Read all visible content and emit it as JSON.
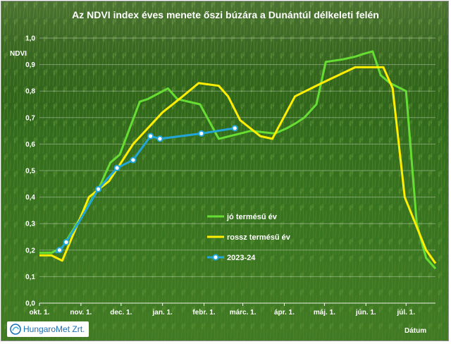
{
  "chart_data": {
    "type": "line",
    "title": "Az NDVI index éves menete őszi búzára a Dunántúl délkeleti felén",
    "ylabel": "NDVI",
    "xlabel": "Dátum",
    "ylim": [
      0,
      1
    ],
    "yticks": [
      "0,0",
      "0,1",
      "0,2",
      "0,3",
      "0,4",
      "0,5",
      "0,6",
      "0,7",
      "0,8",
      "0,9",
      "1,0"
    ],
    "xticks": [
      "okt. 1.",
      "nov. 1.",
      "dec. 1.",
      "jan. 1.",
      "febr. 1.",
      "márc. 1.",
      "ápr. 1.",
      "máj. 1.",
      "jún. 1.",
      "júl. 1."
    ],
    "grid": true,
    "legend_position": "center",
    "series": [
      {
        "name": "jó termésű év",
        "color": "#66dd33",
        "x": [
          0,
          9,
          17,
          45,
          53,
          60,
          75,
          81,
          96,
          103,
          120,
          134,
          150,
          158,
          176,
          185,
          192,
          198,
          207,
          214,
          227,
          236,
          242,
          249,
          255,
          262,
          274,
          282,
          289,
          296
        ],
        "y": [
          0.19,
          0.19,
          0.21,
          0.44,
          0.53,
          0.56,
          0.76,
          0.77,
          0.81,
          0.77,
          0.75,
          0.62,
          0.64,
          0.65,
          0.64,
          0.66,
          0.68,
          0.7,
          0.75,
          0.91,
          0.92,
          0.93,
          0.94,
          0.95,
          0.86,
          0.83,
          0.8,
          0.3,
          0.17,
          0.13
        ]
      },
      {
        "name": "rossz termésű év",
        "color": "#ffee00",
        "x": [
          0,
          9,
          17,
          37,
          52,
          70,
          92,
          107,
          119,
          134,
          141,
          150,
          165,
          174,
          191,
          211,
          236,
          257,
          264,
          273,
          289,
          296
        ],
        "y": [
          0.18,
          0.18,
          0.16,
          0.4,
          0.46,
          0.6,
          0.72,
          0.78,
          0.83,
          0.82,
          0.78,
          0.69,
          0.63,
          0.62,
          0.78,
          0.83,
          0.89,
          0.89,
          0.81,
          0.4,
          0.2,
          0.15
        ]
      },
      {
        "name": "2023-24",
        "color": "#22a6d8",
        "x": [
          12,
          15,
          20,
          30,
          44,
          58,
          70,
          83,
          90,
          121,
          146
        ],
        "y": [
          0.19,
          0.2,
          0.23,
          0.31,
          0.43,
          0.51,
          0.54,
          0.63,
          0.62,
          0.64,
          0.66
        ],
        "markers": [
          false,
          true,
          true,
          false,
          true,
          true,
          true,
          true,
          true,
          true,
          true
        ]
      }
    ]
  },
  "branding": {
    "logo_text": "HungaroMet Zrt."
  }
}
